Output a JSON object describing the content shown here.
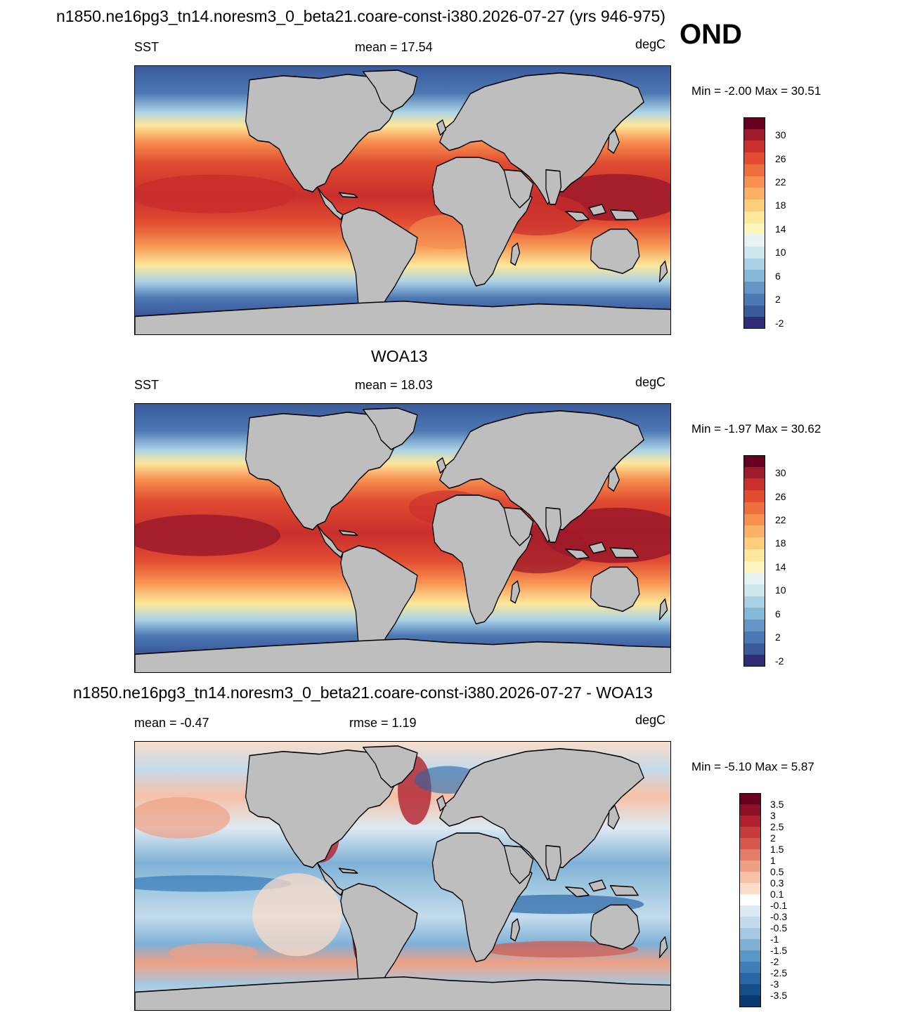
{
  "header": {
    "run_title": "n1850.ne16pg3_tn14.noresm3_0_beta21.coare-const-i380.2026-07-27 (yrs 946-975)",
    "season": "OND"
  },
  "panels": [
    {
      "id": "model",
      "title": "",
      "left_label": "SST",
      "center_label": "mean =  17.54",
      "units": "degC",
      "minmax": "Min =  -2.00 Max =  30.51",
      "colorbar": {
        "ticks": [
          "30",
          "26",
          "22",
          "18",
          "14",
          "10",
          "6",
          "2",
          "-2"
        ],
        "colors": [
          "#67001f",
          "#9e1a2a",
          "#c92f2c",
          "#e14c32",
          "#ef6e3e",
          "#f79050",
          "#fbb065",
          "#fdcd7c",
          "#fde89b",
          "#fbf5be",
          "#e8f4f4",
          "#cce6ee",
          "#aad2e6",
          "#85b9da",
          "#6497c6",
          "#4c78b3",
          "#3a5a9c",
          "#302d76"
        ]
      }
    },
    {
      "id": "obs",
      "title": "WOA13",
      "left_label": "SST",
      "center_label": "mean =  18.03",
      "units": "degC",
      "minmax": "Min =  -1.97 Max =  30.62",
      "colorbar": {
        "ticks": [
          "30",
          "26",
          "22",
          "18",
          "14",
          "10",
          "6",
          "2",
          "-2"
        ],
        "colors": [
          "#67001f",
          "#9e1a2a",
          "#c92f2c",
          "#e14c32",
          "#ef6e3e",
          "#f79050",
          "#fbb065",
          "#fdcd7c",
          "#fde89b",
          "#fbf5be",
          "#e8f4f4",
          "#cce6ee",
          "#aad2e6",
          "#85b9da",
          "#6497c6",
          "#4c78b3",
          "#3a5a9c",
          "#302d76"
        ]
      }
    },
    {
      "id": "diff",
      "title": "n1850.ne16pg3_tn14.noresm3_0_beta21.coare-const-i380.2026-07-27 - WOA13",
      "left_label": "mean =  -0.47",
      "center_label": "rmse =   1.19",
      "units": "degC",
      "minmax": "Min =  -5.10 Max =   5.87",
      "colorbar": {
        "ticks": [
          "3.5",
          "3",
          "2.5",
          "2",
          "1.5",
          "1",
          "0.5",
          "0.3",
          "0.1",
          "-0.1",
          "-0.3",
          "-0.5",
          "-1",
          "-1.5",
          "-2",
          "-2.5",
          "-3",
          "-3.5"
        ],
        "colors": [
          "#67001f",
          "#8c0f25",
          "#b2202e",
          "#c63a3a",
          "#d6584c",
          "#e47d67",
          "#efa084",
          "#f6c1a6",
          "#fadcc8",
          "#ffffff",
          "#dde9f3",
          "#c3dbec",
          "#a3c9e2",
          "#7fb1d6",
          "#5a98c9",
          "#3e7fb9",
          "#2866a5",
          "#154f8c",
          "#083a74"
        ]
      }
    }
  ]
}
